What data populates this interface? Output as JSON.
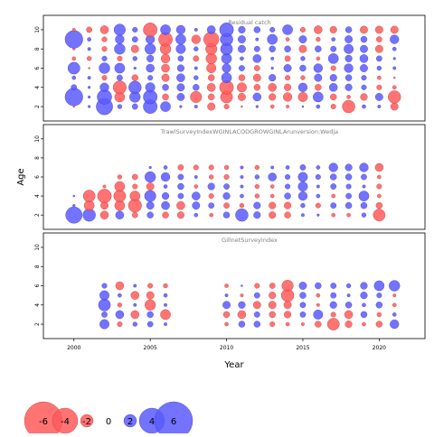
{
  "figure": {
    "xlabel": "Year",
    "ylabel": "Age",
    "x_ticks": [
      2000,
      2005,
      2010,
      2015,
      2020
    ],
    "y_ticks": [
      2,
      4,
      6,
      8,
      10
    ]
  },
  "colors": {
    "negative": "#ff5a5a",
    "positive": "#5a5aff",
    "stroke_negative": "#c83c3c",
    "stroke_positive": "#3c3cc8",
    "frame": "#000000",
    "panel_label": "#808080"
  },
  "legend": {
    "values": [
      -6,
      -4,
      -2,
      0,
      2,
      4,
      6
    ],
    "labels": [
      "-6",
      "-4",
      "-2",
      "0",
      "2",
      "4",
      "6"
    ]
  },
  "chart_data": {
    "type": "scatter",
    "subtype": "bubble",
    "xlabel": "Year",
    "ylabel": "Age",
    "xlim": [
      1998,
      2023
    ],
    "ylim": [
      0.5,
      11.5
    ],
    "panels": [
      {
        "name": "Residual catch",
        "years": [
          2000,
          2001,
          2002,
          2003,
          2004,
          2005,
          2006,
          2007,
          2008,
          2009,
          2010,
          2011,
          2012,
          2013,
          2014,
          2015,
          2016,
          2017,
          2018,
          2019,
          2020,
          2021
        ],
        "ages": [
          2,
          3,
          4,
          5,
          6,
          7,
          8,
          9,
          10
        ],
        "residuals": [
          [
            -0.3,
            0.4,
            2.6,
            0.7,
            0.9,
            2.2,
            1.6,
            0.4,
            0.5,
            -1.2,
            -0.8,
            -0.3,
            0.4,
            -0.6,
            -0.5,
            0.3,
            0.6,
            -0.8,
            -2.0,
            0.6,
            0.5,
            -1.2
          ],
          [
            2.8,
            0.4,
            2.3,
            -1.6,
            1.7,
            2.2,
            -1.0,
            1.2,
            -1.8,
            -1.0,
            -1.9,
            -1.2,
            1.3,
            -1.1,
            -1.4,
            -1.5,
            1.6,
            -1.0,
            -0.6,
            -1.1,
            1.2,
            -2.0
          ],
          [
            0.9,
            0.4,
            1.4,
            -2.1,
            2.0,
            1.5,
            1.0,
            1.2,
            1.0,
            -1.3,
            -2.2,
            -1.5,
            -1.0,
            -1.3,
            -1.1,
            1.4,
            -1.0,
            1.3,
            1.1,
            0.8,
            -0.8,
            -0.6
          ],
          [
            0.6,
            0.5,
            -0.8,
            0.9,
            -1.0,
            0.8,
            -1.2,
            1.3,
            0.7,
            -1.0,
            1.6,
            -1.0,
            -1.2,
            1.1,
            -0.8,
            -0.7,
            1.2,
            1.1,
            1.0,
            0.8,
            -0.6,
            -0.3
          ],
          [
            1.9,
            -0.3,
            1.7,
            1.6,
            0.4,
            1.3,
            -1.3,
            1.1,
            0.5,
            -1.5,
            1.4,
            0.9,
            -0.9,
            0.4,
            1.2,
            1.0,
            1.4,
            -0.8,
            1.4,
            1.2,
            0.7,
            0.5
          ],
          [
            -0.6,
            -0.7,
            0.8,
            -0.8,
            0.7,
            1.1,
            -1.4,
            0.9,
            -0.9,
            -1.7,
            1.6,
            0.6,
            1.3,
            0.5,
            -0.9,
            0.7,
            -0.6,
            1.6,
            1.1,
            1.3,
            0.9,
            0.4
          ],
          [
            -0.4,
            0.5,
            -0.8,
            1.7,
            -1.2,
            1.7,
            -1.7,
            1.5,
            0.7,
            -1.8,
            1.9,
            1.2,
            0.9,
            1.0,
            1.0,
            -1.2,
            1.0,
            0.9,
            1.5,
            1.2,
            -1.2,
            0.6
          ],
          [
            2.8,
            0.6,
            -0.8,
            1.4,
            0.9,
            1.4,
            -2.2,
            1.6,
            -1.4,
            -2.4,
            2.0,
            1.2,
            0.5,
            1.6,
            -0.6,
            1.2,
            -0.7,
            0.6,
            1.2,
            1.0,
            -0.9,
            1.4
          ],
          [
            -0.5,
            -0.9,
            -1.3,
            1.8,
            0.8,
            -2.2,
            1.6,
            1.4,
            0.5,
            1.3,
            2.2,
            1.1,
            1.0,
            0.8,
            1.6,
            -0.8,
            -1.3,
            -1.1,
            1.0,
            -1.2,
            -1.2,
            -1.2
          ]
        ]
      },
      {
        "name": "TrawlSurveyIndexWGINLACODGROWGINLArunversion:Wedja",
        "years": [
          2000,
          2001,
          2002,
          2003,
          2004,
          2005,
          2006,
          2007,
          2008,
          2009,
          2010,
          2011,
          2012,
          2013,
          2014,
          2015,
          2016,
          2017,
          2018,
          2019,
          2020
        ],
        "ages": [
          2,
          3,
          4,
          5,
          6,
          7
        ],
        "residuals": [
          [
            2.6,
            2.0,
            -1.3,
            1.3,
            -0.9,
            1.0,
            -1.0,
            -1.1,
            0.6,
            -0.6,
            1.0,
            2.0,
            1.1,
            -1.1,
            -1.0,
            0.5,
            0.4,
            -0.6,
            -0.6,
            0.7,
            -1.9
          ],
          [
            0.4,
            -1.6,
            -1.2,
            -1.6,
            -2.1,
            1.2,
            1.3,
            -1.3,
            1.2,
            0.9,
            -0.9,
            -0.7,
            1.1,
            -1.1,
            -1.1,
            0.7,
            -0.8,
            0.9,
            1.0,
            1.0,
            -1.0
          ],
          [
            0.3,
            -1.9,
            -2.2,
            -1.9,
            -1.6,
            1.8,
            1.1,
            0.9,
            1.3,
            -0.8,
            1.1,
            0.6,
            -0.7,
            -0.6,
            1.0,
            1.4,
            0.6,
            -0.6,
            0.9,
            1.6,
            -0.6
          ],
          [
            0.0,
            0.0,
            -0.5,
            -1.6,
            -0.8,
            -1.2,
            0.6,
            1.0,
            -0.6,
            1.1,
            0.9,
            0.5,
            -0.7,
            -0.6,
            0.8,
            1.5,
            0.5,
            0.9,
            0.8,
            0.5,
            -0.8
          ],
          [
            0.0,
            0.0,
            0.0,
            -0.7,
            -0.9,
            1.7,
            1.4,
            0.9,
            0.5,
            -0.7,
            -0.8,
            0.5,
            0.7,
            1.3,
            0.8,
            1.5,
            0.8,
            1.0,
            1.0,
            0.9,
            -0.6
          ],
          [
            0.0,
            0.0,
            0.0,
            0.0,
            0.0,
            0.4,
            0.6,
            -0.9,
            -0.8,
            -0.8,
            -0.7,
            0.5,
            -0.7,
            0.5,
            0.6,
            0.9,
            0.6,
            1.4,
            1.1,
            1.4,
            -1.3
          ]
        ]
      },
      {
        "name": "GillnetSurveyIndex",
        "years": [
          2002,
          2003,
          2004,
          2005,
          2006,
          2010,
          2011,
          2012,
          2013,
          2014,
          2015,
          2016,
          2017,
          2018,
          2019,
          2020,
          2021
        ],
        "ages": [
          2,
          3,
          4,
          5,
          6
        ],
        "residuals": [
          [
            1.5,
            -0.8,
            0.7,
            0.9,
            0.5,
            -0.6,
            1.0,
            1.0,
            -0.8,
            -0.6,
            -0.5,
            -1.0,
            -1.9,
            -1.1,
            -0.6,
            -1.0,
            1.4
          ],
          [
            0.9,
            1.3,
            -1.3,
            1.0,
            -1.6,
            -1.0,
            -1.3,
            0.9,
            -1.0,
            -1.1,
            0.9,
            1.5,
            -0.8,
            -1.3,
            1.0,
            -0.7,
            0.6
          ],
          [
            1.9,
            -0.7,
            0.5,
            -1.7,
            0.5,
            1.2,
            1.1,
            -1.2,
            -1.2,
            -1.2,
            0.9,
            -0.5,
            1.1,
            1.0,
            0.6,
            1.0,
            -0.6
          ],
          [
            1.5,
            0.6,
            -1.3,
            -1.2,
            0.6,
            0.5,
            -0.5,
            0.9,
            -1.1,
            -2.0,
            1.0,
            -0.6,
            0.9,
            0.5,
            1.1,
            0.8,
            -0.5
          ],
          [
            0.8,
            -1.3,
            0.5,
            -0.8,
            -0.7,
            -0.6,
            0.3,
            -0.8,
            -0.9,
            -1.8,
            1.2,
            1.0,
            0.9,
            0.7,
            1.1,
            1.6,
            1.7
          ]
        ]
      }
    ]
  }
}
